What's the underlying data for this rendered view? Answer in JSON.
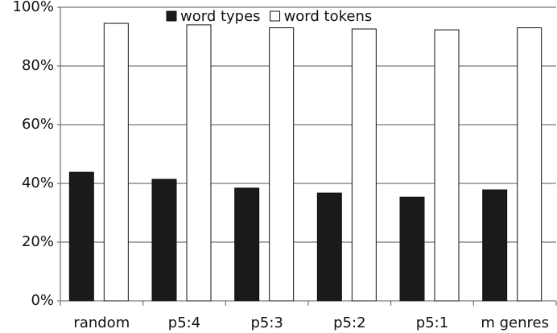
{
  "chart_data": {
    "type": "bar",
    "categories": [
      "random",
      "p5:4",
      "p5:3",
      "p5:2",
      "p5:1",
      "m genres"
    ],
    "series": [
      {
        "name": "word types",
        "color": "#1a1a1a",
        "values": [
          43.8,
          41.4,
          38.4,
          36.7,
          35.3,
          37.8
        ]
      },
      {
        "name": "word tokens",
        "color": "#ffffff",
        "values": [
          94.5,
          94,
          93,
          92.6,
          92.3,
          93
        ]
      }
    ],
    "ylim": [
      0,
      100
    ],
    "yticks": [
      {
        "value": 0,
        "label": "0%"
      },
      {
        "value": 20,
        "label": "20%"
      },
      {
        "value": 40,
        "label": "40%"
      },
      {
        "value": 60,
        "label": "60%"
      },
      {
        "value": 80,
        "label": "80%"
      },
      {
        "value": 100,
        "label": "100%"
      }
    ],
    "grid": true,
    "legend": "top"
  }
}
